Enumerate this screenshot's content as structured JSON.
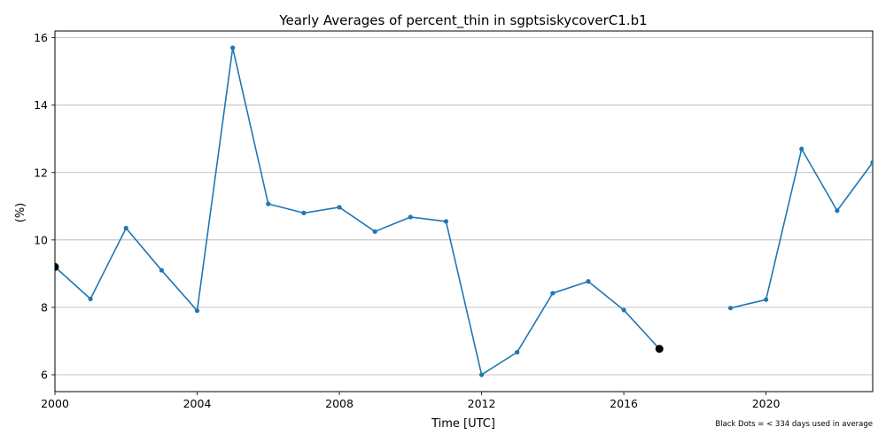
{
  "chart_data": {
    "type": "line",
    "title": "Yearly Averages of percent_thin in sgptsiskycoverC1.b1",
    "xlabel": "Time [UTC]",
    "ylabel": "(%)",
    "xlim": [
      2000,
      2023
    ],
    "ylim": [
      5.5,
      16.2
    ],
    "x_ticks": [
      2000,
      2004,
      2008,
      2012,
      2016,
      2020
    ],
    "y_ticks": [
      6,
      8,
      10,
      12,
      14,
      16
    ],
    "grid": "horizontal",
    "line_color": "#1f77b4",
    "flag_color": "#000000",
    "series": [
      {
        "x": [
          2000,
          2001,
          2002,
          2003,
          2004,
          2005,
          2006,
          2007,
          2008,
          2009,
          2010,
          2011,
          2012,
          2013,
          2014,
          2015,
          2016,
          2017,
          2018,
          2019,
          2020,
          2021,
          2022,
          2023
        ],
        "values": [
          9.2,
          8.25,
          10.35,
          9.1,
          7.9,
          15.7,
          11.07,
          10.8,
          10.97,
          10.25,
          10.68,
          10.55,
          6.0,
          6.67,
          8.42,
          8.77,
          7.92,
          6.77,
          null,
          7.98,
          8.23,
          12.7,
          10.87,
          12.3
        ]
      }
    ],
    "flagged_points": [
      {
        "x": 2000,
        "y": 9.2
      },
      {
        "x": 2017,
        "y": 6.77
      }
    ],
    "note": "Black Dots = < 334 days used in average"
  }
}
